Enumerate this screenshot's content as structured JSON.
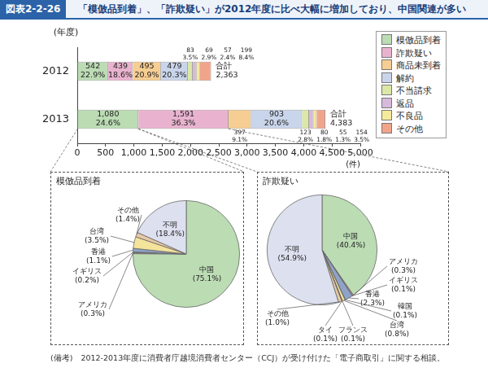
{
  "figure": {
    "number": "図表2-2-26",
    "title": "「模倣品到着」、「詐欺疑い」が2012年度に比べ大幅に増加しており、中国関連が多い"
  },
  "chart_data": [
    {
      "type": "bar",
      "orientation": "horizontal",
      "stacked": true,
      "categories": [
        "2012",
        "2013"
      ],
      "y_label": "(年度)",
      "x_label": "(件)",
      "xlim": [
        0,
        5000
      ],
      "xticks": [
        0,
        500,
        {
          "value": 1000,
          "label": "1,000"
        },
        {
          "value": 1500,
          "label": "1,500"
        },
        {
          "value": 2000,
          "label": "2,000"
        },
        {
          "value": 2500,
          "label": "2,500"
        },
        {
          "value": 3000,
          "label": "3,000"
        },
        {
          "value": 3500,
          "label": "3,500"
        },
        {
          "value": 4000,
          "label": "4,000"
        },
        {
          "value": 4500,
          "label": "4,500"
        },
        {
          "value": 5000,
          "label": "5,000"
        }
      ],
      "grid": false,
      "legend": "right",
      "data_labels": true,
      "series": [
        {
          "name": "模倣品到着",
          "color": "#bcdcb4",
          "values": [
            542,
            1080
          ],
          "value_labels": [
            [
              "542",
              "22.9%"
            ],
            [
              "1,080",
              "24.6%"
            ]
          ]
        },
        {
          "name": "詐欺疑い",
          "color": "#e9b3cf",
          "values": [
            439,
            1591
          ],
          "value_labels": [
            [
              "439",
              "18.6%"
            ],
            [
              "1,591",
              "36.3%"
            ]
          ]
        },
        {
          "name": "商品未到着",
          "color": "#f6cd92",
          "values": [
            495,
            397
          ],
          "value_labels": [
            [
              "495",
              "20.9%"
            ],
            [
              "397",
              "9.1%"
            ]
          ]
        },
        {
          "name": "解約",
          "color": "#c9d5ea",
          "values": [
            479,
            903
          ],
          "value_labels": [
            [
              "479",
              "20.3%"
            ],
            [
              "903",
              "20.6%"
            ]
          ]
        },
        {
          "name": "不当請求",
          "color": "#dbe8a6",
          "values": [
            83,
            123
          ],
          "value_labels": [
            [
              "83",
              "3.5%"
            ],
            [
              "123",
              "2.8%"
            ]
          ]
        },
        {
          "name": "返品",
          "color": "#d7b9dc",
          "values": [
            69,
            80
          ],
          "value_labels": [
            [
              "69",
              "2.9%"
            ],
            [
              "80",
              "1.8%"
            ]
          ]
        },
        {
          "name": "不良品",
          "color": "#f4ea9a",
          "values": [
            57,
            55
          ],
          "value_labels": [
            [
              "57",
              "2.4%"
            ],
            [
              "55",
              "1.3%"
            ]
          ]
        },
        {
          "name": "その他",
          "color": "#f0a58a",
          "values": [
            199,
            154
          ],
          "value_labels": [
            [
              "199",
              "8.4%"
            ],
            [
              "154",
              "3.5%"
            ]
          ]
        }
      ],
      "totals": {
        "label": "合計",
        "values": [
          2363,
          4383
        ],
        "value_labels": [
          "2,363",
          "4,383"
        ]
      }
    },
    {
      "type": "pie",
      "title": "模倣品到着",
      "data_labels": true,
      "categories": [
        "中国",
        "アメリカ",
        "イギリス",
        "香港",
        "台湾",
        "その他",
        "不明"
      ],
      "values": [
        75.1,
        0.3,
        0.2,
        1.1,
        3.5,
        1.4,
        18.4
      ],
      "value_labels": [
        "(75.1%)",
        "(0.3%)",
        "(0.2%)",
        "(1.1%)",
        "(3.5%)",
        "(1.4%)",
        "(18.4%)"
      ],
      "colors": [
        "#bcdcb4",
        "#f0a58a",
        "#c9d5ea",
        "#8fa3c9",
        "#f4e39a",
        "#e7c9a6",
        "#dde0ee"
      ]
    },
    {
      "type": "pie",
      "title": "詐欺疑い",
      "data_labels": true,
      "categories": [
        "中国",
        "アメリカ",
        "イギリス",
        "香港",
        "韓国",
        "台湾",
        "フランス",
        "タイ",
        "その他",
        "不明"
      ],
      "values": [
        40.4,
        0.3,
        0.1,
        2.3,
        0.1,
        0.8,
        0.1,
        0.1,
        1.0,
        54.9
      ],
      "value_labels": [
        "(40.4%)",
        "(0.3%)",
        "(0.1%)",
        "(2.3%)",
        "(0.1%)",
        "(0.8%)",
        "(0.1%)",
        "(0.1%)",
        "(1.0%)",
        "(54.9%)"
      ],
      "colors": [
        "#bcdcb4",
        "#f0a58a",
        "#c9d5ea",
        "#8fa3c9",
        "#e9b3cf",
        "#f4e39a",
        "#d7b9dc",
        "#dbe8a6",
        "#e7c9a6",
        "#dde0ee"
      ]
    }
  ],
  "note": "(備考)　2012-2013年度に消費者庁越境消費者センター（CCJ）が受け付けた「電子商取引」に関する相談。"
}
